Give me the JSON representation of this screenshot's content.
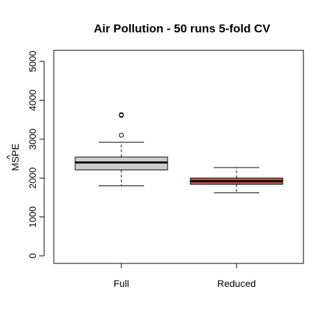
{
  "chart_data": {
    "type": "boxplot",
    "title": "Air Pollution - 50 runs 5-fold CV",
    "xlabel": "",
    "ylabel": "MSPE",
    "ylabel_hat": "^",
    "categories": [
      "Full",
      "Reduced"
    ],
    "yticks": [
      0,
      1000,
      2000,
      3000,
      4000,
      5000
    ],
    "ylim": [
      0,
      5200
    ],
    "grid": false,
    "legend": "none",
    "boxes": [
      {
        "name": "Full",
        "min": 1800,
        "q1": 2210,
        "median": 2400,
        "q3": 2540,
        "max": 2920,
        "outliers": [
          3100,
          3610,
          3630
        ],
        "color": "#cccccc"
      },
      {
        "name": "Reduced",
        "min": 1620,
        "q1": 1840,
        "median": 1920,
        "q3": 2000,
        "max": 2270,
        "outliers": [],
        "color": "#cd5b45"
      }
    ]
  }
}
